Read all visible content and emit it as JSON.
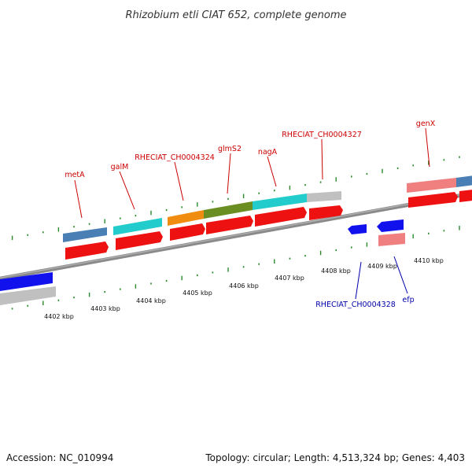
{
  "title": "Rhizobium etli CIAT 652, complete genome",
  "footer": {
    "accession": "Accession: NC_010994",
    "summary": "Topology: circular; Length: 4,513,324 bp; Genes: 4,403"
  },
  "colors": {
    "forward_label": "#cc0000",
    "reverse_label": "#0000aa",
    "tick": "#2a8a2a",
    "backbone": "#888888",
    "cds_forward": "#ee1111",
    "cds_reverse": "#1111ee",
    "cog_steelblue": "#4a7fb5",
    "cog_cyan": "#22cccc",
    "cog_orange": "#f08c10",
    "cog_olive": "#6b8e23",
    "cog_gray": "#c0c0c0",
    "cog_pink": "#f08080",
    "cog_blue": "#1111ee"
  },
  "scale_labels": [
    "4402 kbp",
    "4403 kbp",
    "4404 kbp",
    "4405 kbp",
    "4406 kbp",
    "4407 kbp",
    "4408 kbp",
    "4409 kbp",
    "4410 kbp"
  ],
  "forward_genes": [
    {
      "label": "metA"
    },
    {
      "label": "galM"
    },
    {
      "label": "RHECIAT_CH0004324"
    },
    {
      "label": "glmS2"
    },
    {
      "label": "nagA"
    },
    {
      "label": "RHECIAT_CH0004327"
    },
    {
      "label": "genX"
    }
  ],
  "reverse_genes": [
    {
      "label": "RHECIAT_CH0004328"
    },
    {
      "label": "efp"
    }
  ]
}
